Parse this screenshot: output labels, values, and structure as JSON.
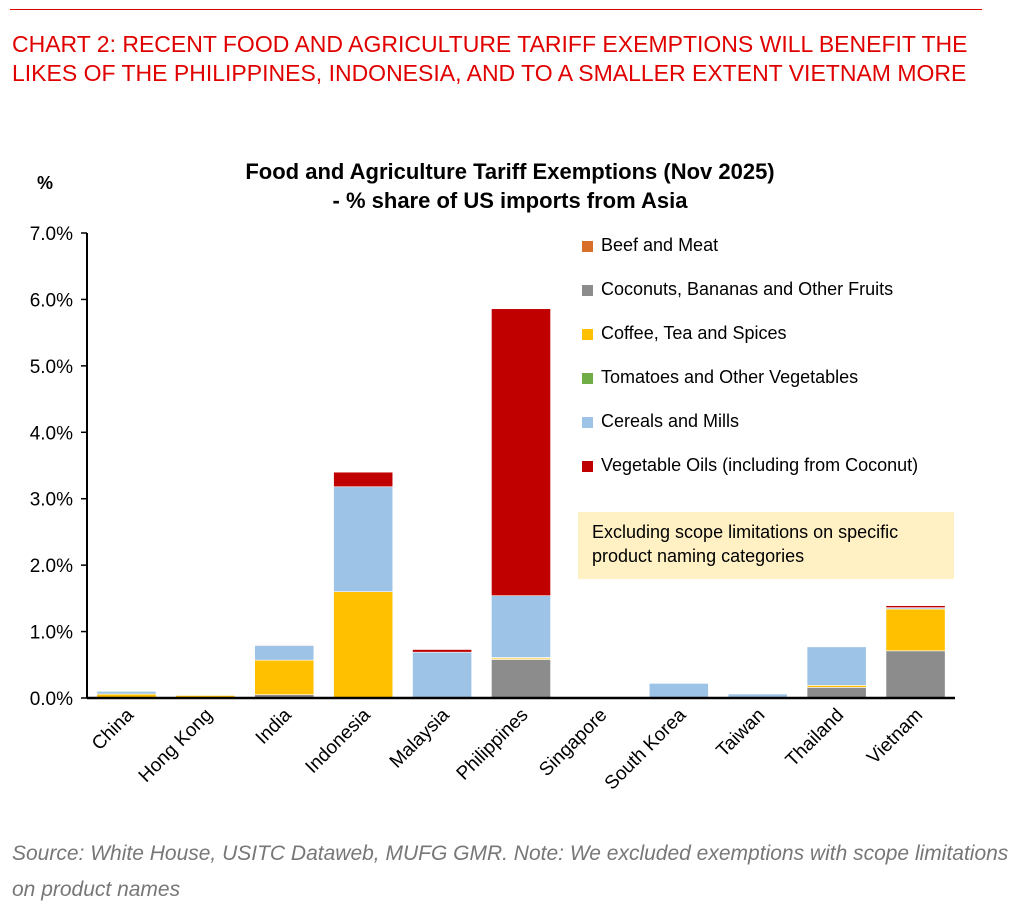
{
  "heading": "CHART 2: RECENT FOOD AND AGRICULTURE TARIFF EXEMPTIONS WILL BENEFIT THE LIKES OF THE PHILIPPINES, INDONESIA, AND TO A SMALLER EXTENT VIETNAM MORE",
  "source": "Source: White House, USITC Dataweb, MUFG GMR. Note: We excluded exemptions with scope limitations on product names",
  "note": "Excluding scope limitations on specific product naming categories",
  "chart_data": {
    "type": "bar",
    "stacked": true,
    "title": "Food and Agriculture Tariff Exemptions (Nov 2025)",
    "subtitle": "- % share of US imports from Asia",
    "ylabel": "%",
    "ylim": [
      0,
      7
    ],
    "yticks": [
      "0.0%",
      "1.0%",
      "2.0%",
      "3.0%",
      "4.0%",
      "5.0%",
      "6.0%",
      "7.0%"
    ],
    "legend_position": "right",
    "categories": [
      "China",
      "Hong Kong",
      "India",
      "Indonesia",
      "Malaysia",
      "Philippines",
      "Singapore",
      "South Korea",
      "Taiwan",
      "Thailand",
      "Vietnam"
    ],
    "series": [
      {
        "name": "Beef and Meat",
        "color": "#d9702a",
        "values": [
          0,
          0,
          0,
          0,
          0,
          0,
          0,
          0,
          0,
          0,
          0
        ]
      },
      {
        "name": "Coconuts, Bananas and Other Fruits",
        "color": "#8c8c8c",
        "values": [
          0,
          0,
          0.05,
          0.01,
          0,
          0.58,
          0,
          0,
          0,
          0.16,
          0.71
        ]
      },
      {
        "name": "Coffee, Tea and Spices",
        "color": "#ffc000",
        "values": [
          0.06,
          0.04,
          0.52,
          1.59,
          0,
          0.02,
          0,
          0,
          0,
          0.03,
          0.63
        ]
      },
      {
        "name": "Tomatoes and Other Vegetables",
        "color": "#70ad47",
        "values": [
          0,
          0,
          0,
          0,
          0,
          0.01,
          0,
          0,
          0,
          0,
          0
        ]
      },
      {
        "name": "Cereals and Mills",
        "color": "#9dc3e6",
        "values": [
          0.04,
          0.01,
          0.22,
          1.58,
          0.69,
          0.93,
          0,
          0.22,
          0.06,
          0.58,
          0.02
        ]
      },
      {
        "name": "Vegetable Oils (including from Coconut)",
        "color": "#c00000",
        "values": [
          0,
          0,
          0.01,
          0.22,
          0.04,
          4.32,
          0,
          0,
          0,
          0,
          0.03
        ]
      }
    ]
  }
}
